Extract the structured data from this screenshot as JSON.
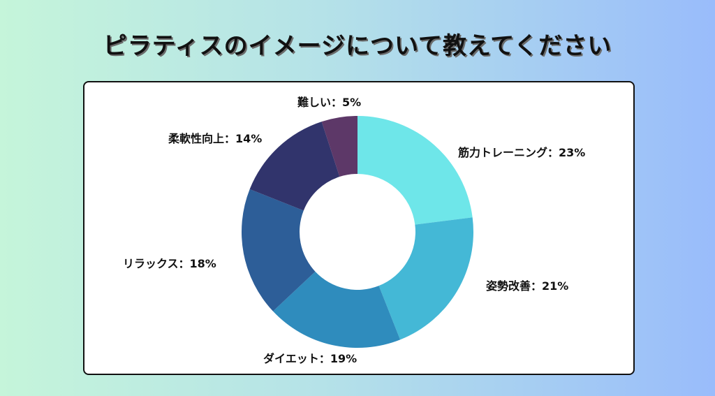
{
  "chart_data": {
    "type": "pie",
    "variant": "donut",
    "title": "ピラティスのイメージについて教えてください",
    "categories": [
      "筋力トレーニング",
      "姿勢改善",
      "ダイエット",
      "リラックス",
      "柔軟性向上",
      "難しい"
    ],
    "values": [
      23,
      21,
      19,
      18,
      14,
      5
    ],
    "labels": [
      "筋力トレーニング：23%",
      "姿勢改善：21%",
      "ダイエット：19%",
      "リラックス：18%",
      "柔軟性向上：14%",
      "難しい：5%"
    ],
    "colors": [
      "#6ee6e9",
      "#44b8d6",
      "#2f8cbd",
      "#2d5e98",
      "#31346c",
      "#5d3868"
    ],
    "legend": "none"
  }
}
